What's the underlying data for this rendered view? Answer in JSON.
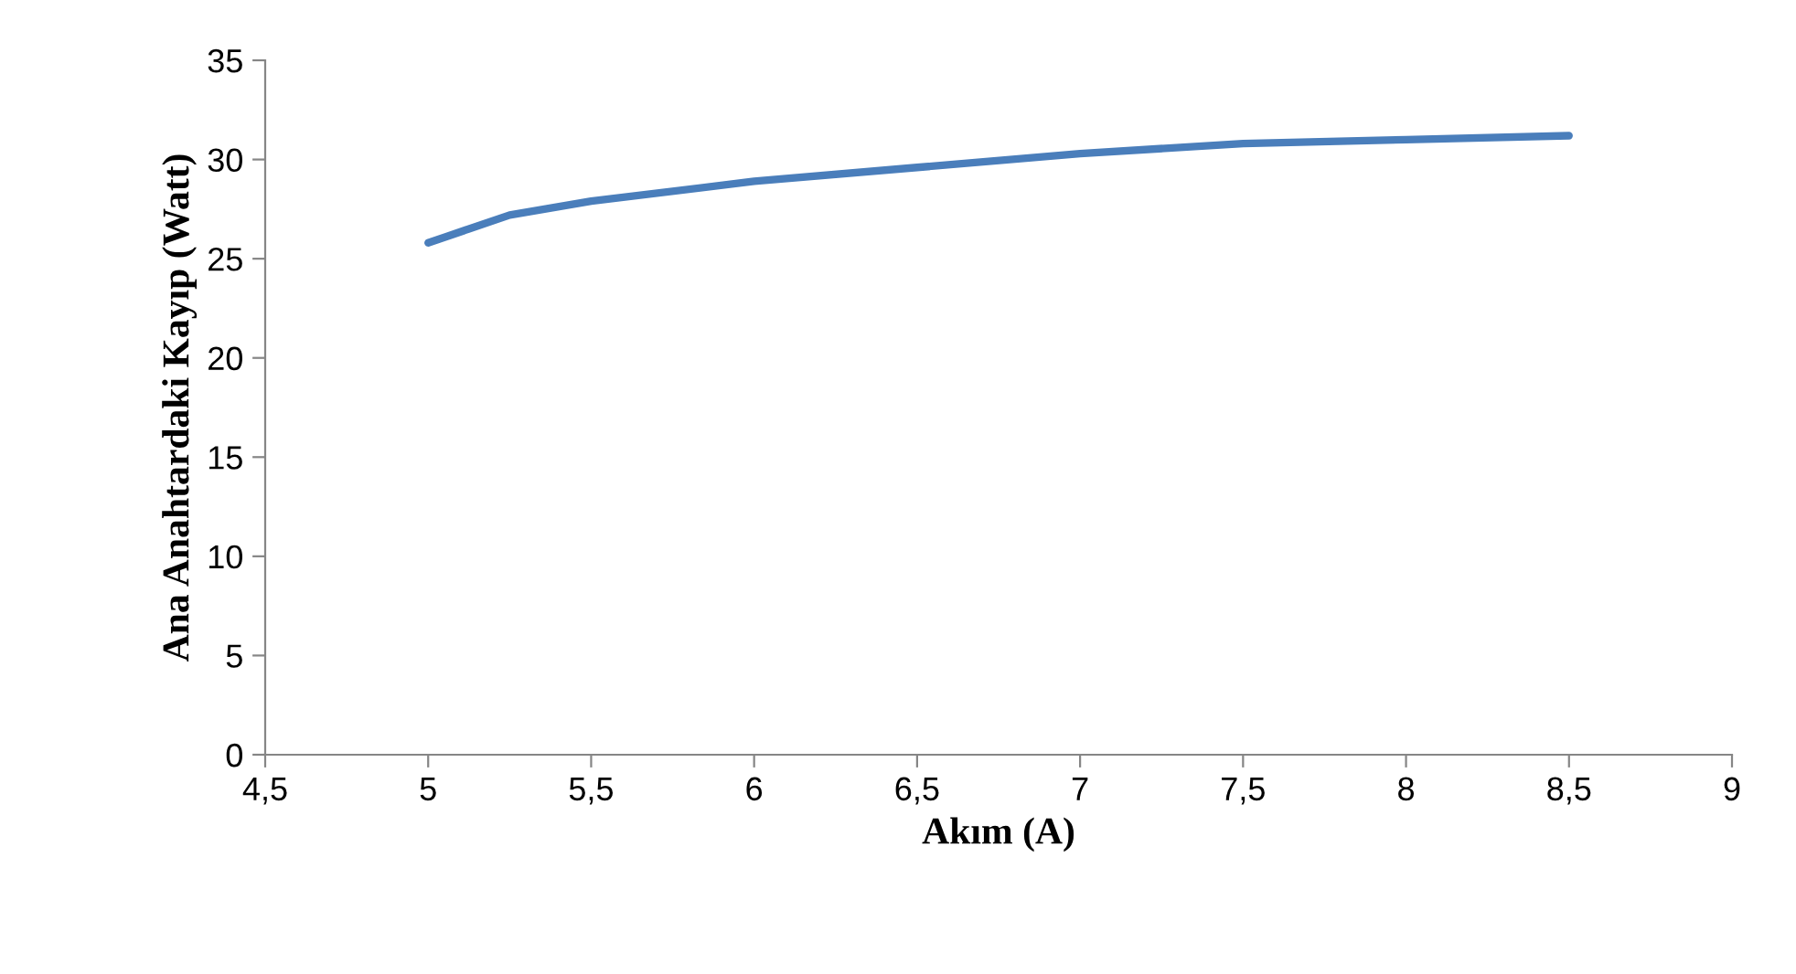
{
  "chart_data": {
    "type": "line",
    "xlabel": "Akım (A)",
    "ylabel": "Ana Anahtardaki Kayıp (Watt)",
    "x": [
      5,
      5.25,
      5.5,
      6,
      6.5,
      7,
      7.5,
      8,
      8.5
    ],
    "series": [
      {
        "color": "#4a7ebb",
        "values": [
          25.8,
          27.2,
          27.9,
          28.9,
          29.6,
          30.3,
          30.8,
          31.0,
          31.2
        ]
      }
    ],
    "xlim": [
      4.5,
      9
    ],
    "ylim": [
      0,
      35
    ],
    "xticks": [
      {
        "value": 4.5,
        "label": "4,5"
      },
      5,
      {
        "value": 5.5,
        "label": "5,5"
      },
      6,
      {
        "value": 6.5,
        "label": "6,5"
      },
      7,
      {
        "value": 7.5,
        "label": "7,5"
      },
      8,
      {
        "value": 8.5,
        "label": "8,5"
      },
      9
    ],
    "yticks": [
      0,
      5,
      10,
      15,
      20,
      25,
      30,
      35
    ],
    "grid": false,
    "legend": false,
    "marker": "none",
    "line_style": "solid"
  }
}
